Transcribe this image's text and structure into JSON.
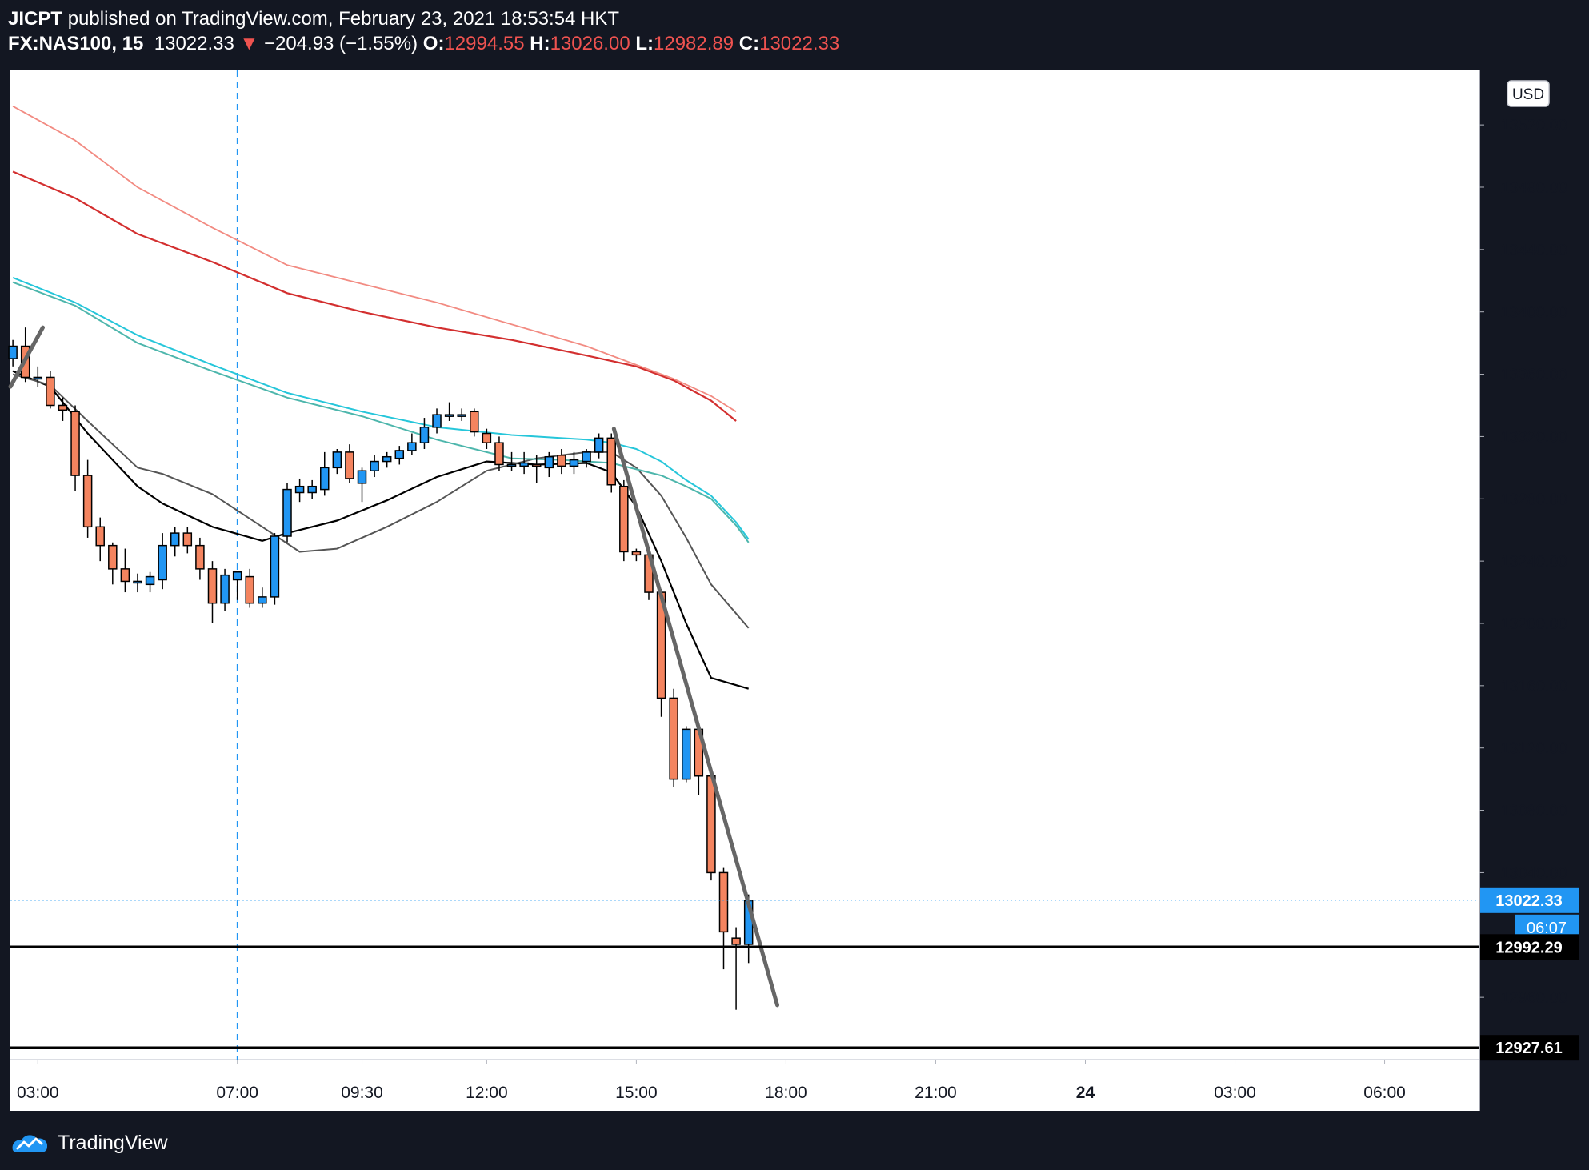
{
  "header": {
    "author": "JICPT",
    "published_text": "published on TradingView.com, February 23, 2021 18:53:54 HKT",
    "symbol": "FX:NAS100, 15",
    "last_price": "13022.33",
    "change_arrow": "▼",
    "change": "−204.93 (−1.55%)",
    "open_label": "O:",
    "open": "12994.55",
    "high_label": "H:",
    "high": "13026.00",
    "low_label": "L:",
    "low": "12982.89",
    "close_label": "C:",
    "close": "13022.33"
  },
  "currency_button": "USD",
  "footer": {
    "brand": "TradingView",
    "logo_icon": "tradingview-logo-icon"
  },
  "colors": {
    "background": "#131722",
    "up": "#2196f3",
    "down": "#f4845f",
    "grid_text": "#ffffff",
    "ema_black": "#000000",
    "ema_gray": "#555555",
    "ema_cyan1": "#26c6da",
    "ema_cyan2": "#4db6ac",
    "ema_red": "#d32f2f",
    "ema_salmon": "#f28b82",
    "trendline": "#666666",
    "current_price_line": "#2196f3"
  },
  "chart_data": {
    "type": "candlestick",
    "interval": "15",
    "currency": "USD",
    "ylim": [
      12920,
      13555
    ],
    "y_ticks": [
      "13520.00",
      "13480.00",
      "13440.00",
      "13400.00",
      "13360.00",
      "13320.00",
      "13280.00",
      "13240.00",
      "13200.00",
      "13160.00",
      "13120.00",
      "13080.00",
      "13040.00",
      "12960.00"
    ],
    "x_ticks": [
      {
        "label": "03:00",
        "t": 0
      },
      {
        "label": "07:00",
        "t": 16
      },
      {
        "label": "09:30",
        "t": 26
      },
      {
        "label": "12:00",
        "t": 36
      },
      {
        "label": "15:00",
        "t": 48
      },
      {
        "label": "18:00",
        "t": 60
      },
      {
        "label": "21:00",
        "t": 72
      },
      {
        "label": "24",
        "t": 84,
        "bold": true
      },
      {
        "label": "03:00",
        "t": 96
      },
      {
        "label": "06:00",
        "t": 108
      }
    ],
    "x_range": [
      -2.2,
      115.6
    ],
    "candles": [
      {
        "t": -2,
        "o": 13370,
        "h": 13382,
        "l": 13365,
        "c": 13378
      },
      {
        "t": -1,
        "o": 13378,
        "h": 13390,
        "l": 13355,
        "c": 13358
      },
      {
        "t": 0,
        "o": 13358,
        "h": 13365,
        "l": 13352,
        "c": 13358
      },
      {
        "t": 1,
        "o": 13358,
        "h": 13362,
        "l": 13338,
        "c": 13340
      },
      {
        "t": 2,
        "o": 13340,
        "h": 13345,
        "l": 13330,
        "c": 13337
      },
      {
        "t": 3,
        "o": 13336,
        "h": 13340,
        "l": 13285,
        "c": 13295
      },
      {
        "t": 4,
        "o": 13295,
        "h": 13305,
        "l": 13255,
        "c": 13262
      },
      {
        "t": 5,
        "o": 13262,
        "h": 13268,
        "l": 13240,
        "c": 13250
      },
      {
        "t": 6,
        "o": 13250,
        "h": 13252,
        "l": 13225,
        "c": 13235
      },
      {
        "t": 7,
        "o": 13235,
        "h": 13248,
        "l": 13220,
        "c": 13227
      },
      {
        "t": 8,
        "o": 13227,
        "h": 13232,
        "l": 13220,
        "c": 13227
      },
      {
        "t": 9,
        "o": 13225,
        "h": 13233,
        "l": 13220,
        "c": 13230
      },
      {
        "t": 10,
        "o": 13228,
        "h": 13258,
        "l": 13222,
        "c": 13250
      },
      {
        "t": 11,
        "o": 13250,
        "h": 13262,
        "l": 13243,
        "c": 13258
      },
      {
        "t": 12,
        "o": 13258,
        "h": 13262,
        "l": 13245,
        "c": 13250
      },
      {
        "t": 13,
        "o": 13250,
        "h": 13255,
        "l": 13228,
        "c": 13235
      },
      {
        "t": 14,
        "o": 13235,
        "h": 13240,
        "l": 13200,
        "c": 13213
      },
      {
        "t": 15,
        "o": 13213,
        "h": 13235,
        "l": 13208,
        "c": 13231
      },
      {
        "t": 16,
        "o": 13228,
        "h": 13233,
        "l": 13215,
        "c": 13233
      },
      {
        "t": 17,
        "o": 13230,
        "h": 13235,
        "l": 13210,
        "c": 13213
      },
      {
        "t": 18,
        "o": 13213,
        "h": 13223,
        "l": 13210,
        "c": 13217
      },
      {
        "t": 19,
        "o": 13217,
        "h": 13258,
        "l": 13212,
        "c": 13256
      },
      {
        "t": 20,
        "o": 13256,
        "h": 13290,
        "l": 13252,
        "c": 13286
      },
      {
        "t": 21,
        "o": 13284,
        "h": 13293,
        "l": 13278,
        "c": 13288
      },
      {
        "t": 22,
        "o": 13284,
        "h": 13292,
        "l": 13280,
        "c": 13288
      },
      {
        "t": 23,
        "o": 13286,
        "h": 13310,
        "l": 13282,
        "c": 13300
      },
      {
        "t": 24,
        "o": 13300,
        "h": 13312,
        "l": 13296,
        "c": 13310
      },
      {
        "t": 25,
        "o": 13310,
        "h": 13315,
        "l": 13290,
        "c": 13293
      },
      {
        "t": 26,
        "o": 13290,
        "h": 13300,
        "l": 13278,
        "c": 13298
      },
      {
        "t": 27,
        "o": 13298,
        "h": 13308,
        "l": 13294,
        "c": 13304
      },
      {
        "t": 28,
        "o": 13304,
        "h": 13310,
        "l": 13300,
        "c": 13307
      },
      {
        "t": 29,
        "o": 13306,
        "h": 13314,
        "l": 13302,
        "c": 13311
      },
      {
        "t": 30,
        "o": 13311,
        "h": 13322,
        "l": 13308,
        "c": 13316
      },
      {
        "t": 31,
        "o": 13316,
        "h": 13332,
        "l": 13312,
        "c": 13326
      },
      {
        "t": 32,
        "o": 13326,
        "h": 13338,
        "l": 13322,
        "c": 13334
      },
      {
        "t": 33,
        "o": 13334,
        "h": 13342,
        "l": 13330,
        "c": 13334
      },
      {
        "t": 34,
        "o": 13334,
        "h": 13338,
        "l": 13330,
        "c": 13334
      },
      {
        "t": 35,
        "o": 13336,
        "h": 13338,
        "l": 13320,
        "c": 13323
      },
      {
        "t": 36,
        "o": 13322,
        "h": 13325,
        "l": 13312,
        "c": 13316
      },
      {
        "t": 37,
        "o": 13316,
        "h": 13320,
        "l": 13298,
        "c": 13302
      },
      {
        "t": 38,
        "o": 13302,
        "h": 13310,
        "l": 13298,
        "c": 13302
      },
      {
        "t": 39,
        "o": 13301,
        "h": 13310,
        "l": 13296,
        "c": 13303
      },
      {
        "t": 40,
        "o": 13302,
        "h": 13308,
        "l": 13290,
        "c": 13301
      },
      {
        "t": 41,
        "o": 13300,
        "h": 13310,
        "l": 13294,
        "c": 13307
      },
      {
        "t": 42,
        "o": 13308,
        "h": 13312,
        "l": 13296,
        "c": 13301
      },
      {
        "t": 43,
        "o": 13301,
        "h": 13310,
        "l": 13296,
        "c": 13305
      },
      {
        "t": 44,
        "o": 13304,
        "h": 13312,
        "l": 13300,
        "c": 13310
      },
      {
        "t": 45,
        "o": 13310,
        "h": 13322,
        "l": 13306,
        "c": 13319
      },
      {
        "t": 46,
        "o": 13319,
        "h": 13322,
        "l": 13284,
        "c": 13289
      },
      {
        "t": 47,
        "o": 13288,
        "h": 13292,
        "l": 13240,
        "c": 13246
      },
      {
        "t": 48,
        "o": 13246,
        "h": 13248,
        "l": 13240,
        "c": 13244
      },
      {
        "t": 49,
        "o": 13244,
        "h": 13246,
        "l": 13215,
        "c": 13220
      },
      {
        "t": 50,
        "o": 13220,
        "h": 13222,
        "l": 13140,
        "c": 13152
      },
      {
        "t": 51,
        "o": 13152,
        "h": 13158,
        "l": 13095,
        "c": 13100
      },
      {
        "t": 52,
        "o": 13100,
        "h": 13134,
        "l": 13098,
        "c": 13132
      },
      {
        "t": 53,
        "o": 13132,
        "h": 13134,
        "l": 13090,
        "c": 13102
      },
      {
        "t": 54,
        "o": 13102,
        "h": 13106,
        "l": 13035,
        "c": 13040
      },
      {
        "t": 55,
        "o": 13040,
        "h": 13043,
        "l": 12978,
        "c": 13002
      },
      {
        "t": 56,
        "o": 12998,
        "h": 13005,
        "l": 12952,
        "c": 12994
      },
      {
        "t": 57,
        "o": 12994,
        "h": 13026,
        "l": 12982,
        "c": 13022
      }
    ],
    "moving_averages": [
      {
        "color_key": "ema_black",
        "width": 2.2,
        "points": [
          [
            -2,
            13362
          ],
          [
            1,
            13352
          ],
          [
            4,
            13322
          ],
          [
            8,
            13288
          ],
          [
            10,
            13277
          ],
          [
            14,
            13262
          ],
          [
            18,
            13253
          ],
          [
            20,
            13258
          ],
          [
            24,
            13266
          ],
          [
            28,
            13279
          ],
          [
            32,
            13294
          ],
          [
            36,
            13304
          ],
          [
            40,
            13302
          ],
          [
            44,
            13303
          ],
          [
            46,
            13297
          ],
          [
            48,
            13275
          ],
          [
            50,
            13240
          ],
          [
            52,
            13200
          ],
          [
            54,
            13165
          ],
          [
            57,
            13158
          ]
        ]
      },
      {
        "color_key": "ema_gray",
        "width": 2,
        "points": [
          [
            -2,
            13360
          ],
          [
            1,
            13353
          ],
          [
            4,
            13330
          ],
          [
            8,
            13300
          ],
          [
            10,
            13296
          ],
          [
            14,
            13283
          ],
          [
            18,
            13262
          ],
          [
            21,
            13246
          ],
          [
            24,
            13248
          ],
          [
            28,
            13262
          ],
          [
            32,
            13278
          ],
          [
            36,
            13298
          ],
          [
            40,
            13306
          ],
          [
            44,
            13310
          ],
          [
            46,
            13310
          ],
          [
            48,
            13300
          ],
          [
            50,
            13282
          ],
          [
            52,
            13255
          ],
          [
            54,
            13225
          ],
          [
            57,
            13197
          ]
        ]
      },
      {
        "color_key": "ema_cyan1",
        "width": 2,
        "points": [
          [
            -2,
            13422
          ],
          [
            3,
            13406
          ],
          [
            8,
            13385
          ],
          [
            14,
            13366
          ],
          [
            20,
            13348
          ],
          [
            26,
            13336
          ],
          [
            32,
            13326
          ],
          [
            38,
            13321
          ],
          [
            44,
            13318
          ],
          [
            46,
            13316
          ],
          [
            48,
            13312
          ],
          [
            50,
            13304
          ],
          [
            52,
            13292
          ],
          [
            54,
            13282
          ],
          [
            56,
            13265
          ],
          [
            57,
            13254
          ]
        ]
      },
      {
        "color_key": "ema_cyan2",
        "width": 2,
        "points": [
          [
            -2,
            13419
          ],
          [
            3,
            13404
          ],
          [
            8,
            13380
          ],
          [
            14,
            13362
          ],
          [
            20,
            13345
          ],
          [
            26,
            13333
          ],
          [
            32,
            13318
          ],
          [
            38,
            13306
          ],
          [
            42,
            13305
          ],
          [
            46,
            13303
          ],
          [
            50,
            13295
          ],
          [
            52,
            13288
          ],
          [
            54,
            13280
          ],
          [
            56,
            13263
          ],
          [
            57,
            13252
          ]
        ]
      },
      {
        "color_key": "ema_red",
        "width": 2.2,
        "points": [
          [
            -2,
            13490
          ],
          [
            3,
            13473
          ],
          [
            8,
            13450
          ],
          [
            14,
            13432
          ],
          [
            20,
            13412
          ],
          [
            26,
            13400
          ],
          [
            32,
            13390
          ],
          [
            38,
            13382
          ],
          [
            44,
            13372
          ],
          [
            48,
            13365
          ],
          [
            51,
            13356
          ],
          [
            54,
            13343
          ],
          [
            56,
            13330
          ]
        ]
      },
      {
        "color_key": "ema_salmon",
        "width": 1.8,
        "points": [
          [
            -2,
            13532
          ],
          [
            3,
            13510
          ],
          [
            8,
            13480
          ],
          [
            14,
            13454
          ],
          [
            20,
            13430
          ],
          [
            26,
            13418
          ],
          [
            32,
            13406
          ],
          [
            38,
            13392
          ],
          [
            44,
            13378
          ],
          [
            48,
            13366
          ],
          [
            51,
            13357
          ],
          [
            54,
            13346
          ],
          [
            56,
            13336
          ]
        ]
      }
    ],
    "trendlines": [
      {
        "from": [
          -2.2,
          13352
        ],
        "to": [
          0.4,
          13390
        ]
      },
      {
        "from": [
          46.2,
          13325
        ],
        "to": [
          59.3,
          12955
        ]
      }
    ],
    "horizontal_lines": [
      {
        "price": 12992.29,
        "label": "12992.29"
      },
      {
        "price": 12927.61,
        "label": "12927.61"
      }
    ],
    "vertical_marker_t": 16,
    "current_price": {
      "price": 13022.33,
      "label": "13022.33",
      "countdown": "06:07"
    }
  }
}
